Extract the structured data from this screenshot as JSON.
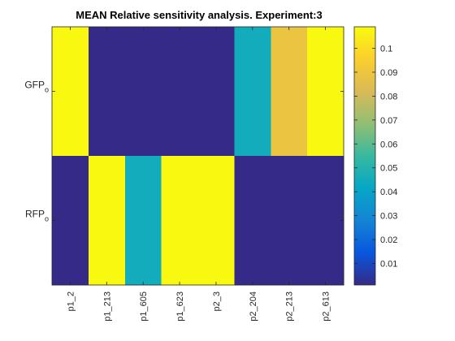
{
  "chart_data": {
    "type": "heatmap",
    "title": "MEAN Relative sensitivity analysis. Experiment:3",
    "xlabel": "",
    "ylabel": "",
    "columns": [
      "p1_2",
      "p1_213",
      "p1_605",
      "p1_623",
      "p2_3",
      "p2_204",
      "p2_213",
      "p2_613"
    ],
    "rows": [
      {
        "label": "GFP",
        "subscript": "o"
      },
      {
        "label": "RFP",
        "subscript": "o"
      }
    ],
    "values": [
      [
        0.108,
        0.001,
        0.001,
        0.001,
        0.001,
        0.045,
        0.089,
        0.108
      ],
      [
        0.001,
        0.108,
        0.045,
        0.108,
        0.108,
        0.001,
        0.001,
        0.001
      ]
    ],
    "colormap": "parula",
    "clim": [
      0.001,
      0.109
    ],
    "colorbar": {
      "ticks": [
        0.01,
        0.02,
        0.03,
        0.04,
        0.05,
        0.06,
        0.07,
        0.08,
        0.09,
        0.1
      ],
      "tick_labels": [
        "0.01",
        "0.02",
        "0.03",
        "0.04",
        "0.05",
        "0.06",
        "0.07",
        "0.08",
        "0.09",
        "0.1"
      ],
      "placement": "right"
    },
    "grid": false
  }
}
